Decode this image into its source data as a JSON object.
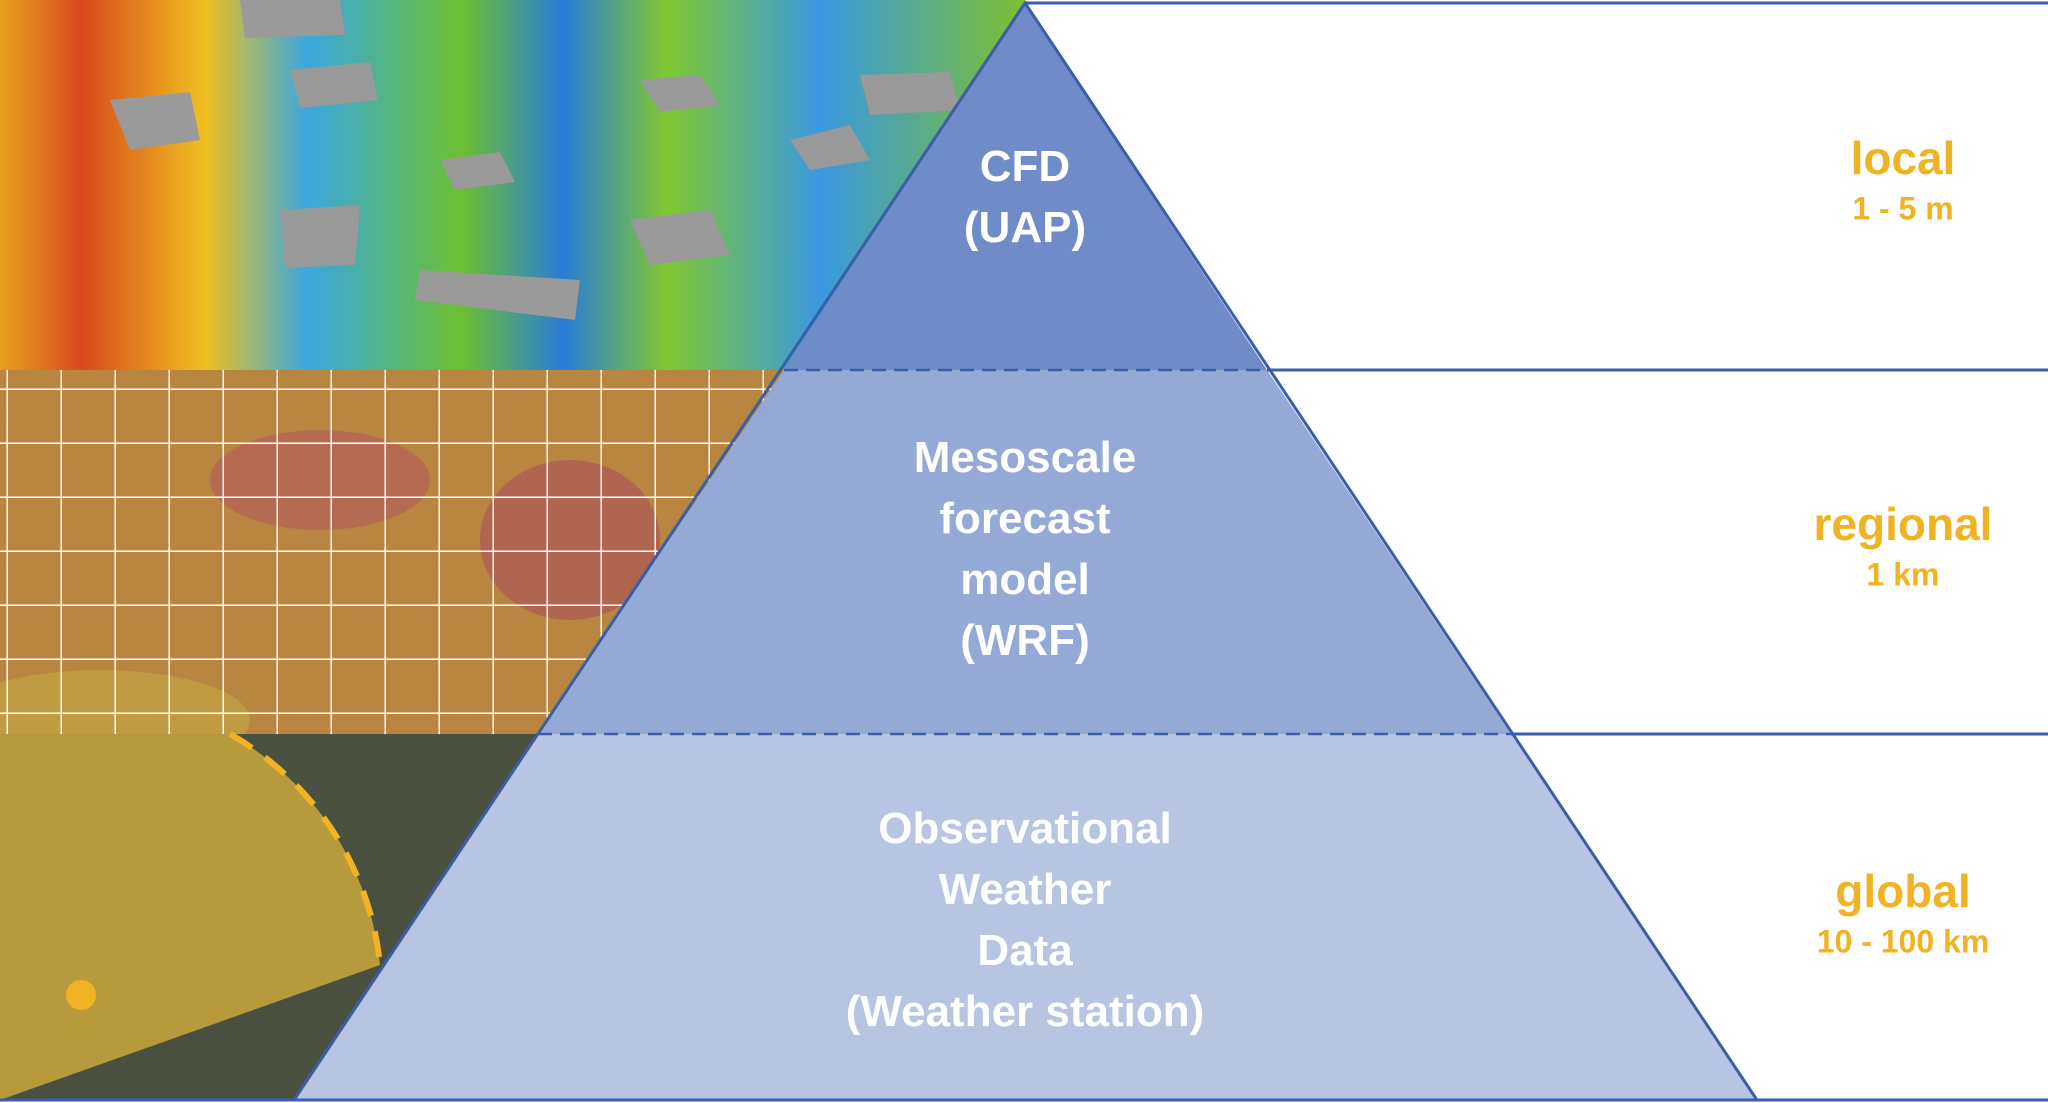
{
  "levels": [
    {
      "lines": [
        "CFD",
        "(UAP)"
      ],
      "scale": "local",
      "range": "1 - 5 m"
    },
    {
      "lines": [
        "Mesoscale",
        "forecast",
        "model",
        "(WRF)"
      ],
      "scale": "regional",
      "range": "1 km"
    },
    {
      "lines": [
        "Observational",
        "Weather",
        "Data",
        "(Weather station)"
      ],
      "scale": "global",
      "range": "10 - 100 km"
    }
  ]
}
